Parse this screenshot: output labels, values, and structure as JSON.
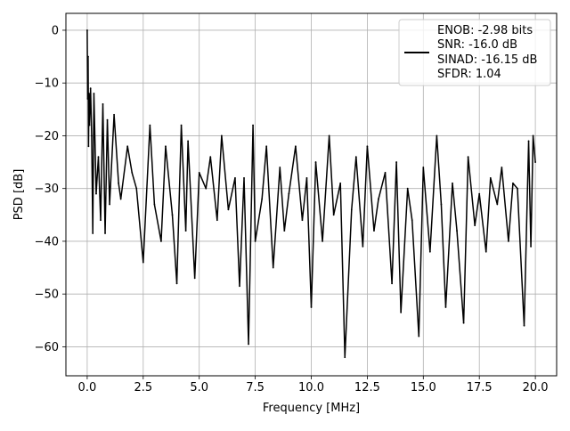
{
  "chart_data": {
    "type": "line",
    "xlabel": "Frequency [MHz]",
    "ylabel": "PSD [dB]",
    "xlim": [
      -0.95,
      20.95
    ],
    "ylim": [
      -65.5,
      3.2
    ],
    "xticks": [
      0.0,
      2.5,
      5.0,
      7.5,
      10.0,
      12.5,
      15.0,
      17.5,
      20.0
    ],
    "xtick_labels": [
      "0.0",
      "2.5",
      "5.0",
      "7.5",
      "10.0",
      "12.5",
      "15.0",
      "17.5",
      "20.0"
    ],
    "yticks": [
      0,
      -10,
      -20,
      -30,
      -40,
      -50,
      -60
    ],
    "ytick_labels": [
      "0",
      "−10",
      "−20",
      "−30",
      "−40",
      "−50",
      "−60"
    ],
    "grid": true,
    "legend_position": "top-right",
    "legend_lines": [
      "ENOB: -2.98 bits",
      "SNR: -16.0 dB",
      "SINAD: -16.15 dB",
      "SFDR: 1.04"
    ],
    "series_color": "#000000",
    "series": [
      {
        "x": [
          0.0,
          0.02,
          0.04,
          0.06,
          0.08,
          0.1,
          0.15,
          0.2,
          0.25,
          0.3,
          0.4,
          0.5,
          0.6,
          0.7,
          0.8,
          0.9,
          1.0,
          1.2,
          1.4,
          1.5,
          1.8,
          2.0,
          2.2,
          2.5,
          2.8,
          3.0,
          3.3,
          3.5,
          3.8,
          4.0,
          4.2,
          4.4,
          4.5,
          4.8,
          5.0,
          5.3,
          5.5,
          5.8,
          6.0,
          6.3,
          6.6,
          6.8,
          7.0,
          7.2,
          7.4,
          7.5,
          7.8,
          8.0,
          8.3,
          8.6,
          8.8,
          9.0,
          9.3,
          9.6,
          9.8,
          10.0,
          10.2,
          10.5,
          10.8,
          11.0,
          11.3,
          11.5,
          11.8,
          12.0,
          12.3,
          12.5,
          12.8,
          13.0,
          13.3,
          13.6,
          13.8,
          14.0,
          14.3,
          14.5,
          14.8,
          15.0,
          15.3,
          15.6,
          15.8,
          16.0,
          16.3,
          16.5,
          16.8,
          17.0,
          17.3,
          17.5,
          17.8,
          18.0,
          18.3,
          18.5,
          18.8,
          19.0,
          19.2,
          19.5,
          19.7,
          19.8,
          19.9,
          20.0
        ],
        "y": [
          0.0,
          -13.0,
          -5.0,
          -22.0,
          -12.0,
          -18.0,
          -11.0,
          -20.0,
          -38.5,
          -12.0,
          -31.0,
          -24.0,
          -36.0,
          -14.0,
          -38.5,
          -17.0,
          -33.0,
          -16.0,
          -29.0,
          -32.0,
          -22.0,
          -27.0,
          -30.0,
          -44.0,
          -18.0,
          -33.0,
          -40.0,
          -22.0,
          -35.0,
          -48.0,
          -18.0,
          -38.0,
          -21.0,
          -47.0,
          -27.0,
          -30.0,
          -24.0,
          -36.0,
          -20.0,
          -34.0,
          -28.0,
          -48.5,
          -28.0,
          -59.5,
          -18.0,
          -40.0,
          -32.0,
          -22.0,
          -45.0,
          -26.0,
          -38.0,
          -31.0,
          -22.0,
          -36.0,
          -28.0,
          -52.5,
          -25.0,
          -40.0,
          -20.0,
          -35.0,
          -29.0,
          -62.0,
          -34.0,
          -24.0,
          -41.0,
          -22.0,
          -38.0,
          -32.0,
          -27.0,
          -48.0,
          -25.0,
          -53.5,
          -30.0,
          -36.0,
          -58.0,
          -26.0,
          -42.0,
          -20.0,
          -33.0,
          -52.5,
          -29.0,
          -38.0,
          -55.5,
          -24.0,
          -37.0,
          -31.0,
          -42.0,
          -28.0,
          -33.0,
          -26.0,
          -40.0,
          -29.0,
          -30.0,
          -56.0,
          -21.0,
          -41.0,
          -20.0,
          -25.0
        ]
      }
    ]
  }
}
